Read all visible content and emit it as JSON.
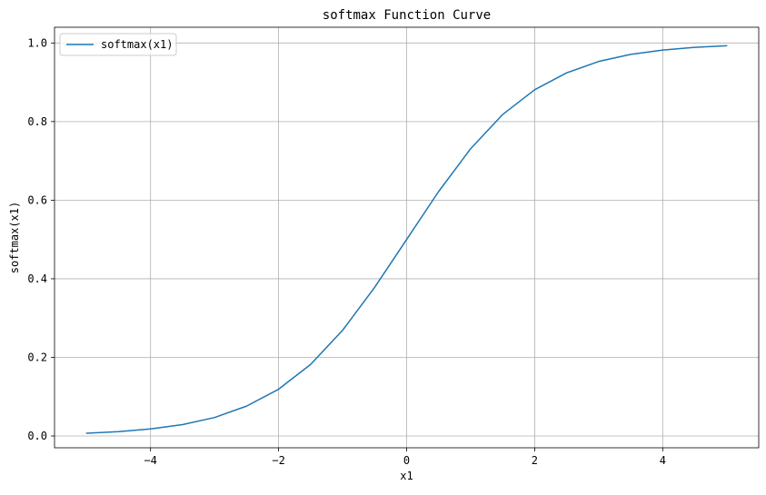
{
  "chart_data": {
    "type": "line",
    "title": "softmax Function Curve",
    "xlabel": "x1",
    "ylabel": "softmax(x1)",
    "xlim": [
      -5.5,
      5.5
    ],
    "ylim": [
      -0.03,
      1.04
    ],
    "xticks": [
      -4,
      -2,
      0,
      2,
      4
    ],
    "xtick_labels": [
      "−4",
      "−2",
      "0",
      "2",
      "4"
    ],
    "yticks": [
      0.0,
      0.2,
      0.4,
      0.6,
      0.8,
      1.0
    ],
    "ytick_labels": [
      "0.0",
      "0.2",
      "0.4",
      "0.6",
      "0.8",
      "1.0"
    ],
    "grid": true,
    "legend_position": "top-left",
    "series": [
      {
        "name": "softmax(x1)",
        "color": "#1f77b4",
        "x": [
          -5.0,
          -4.5,
          -4.0,
          -3.5,
          -3.0,
          -2.5,
          -2.0,
          -1.5,
          -1.0,
          -0.5,
          0.0,
          0.5,
          1.0,
          1.5,
          2.0,
          2.5,
          3.0,
          3.5,
          4.0,
          4.5,
          5.0
        ],
        "y": [
          0.007,
          0.011,
          0.018,
          0.029,
          0.047,
          0.076,
          0.119,
          0.182,
          0.269,
          0.378,
          0.5,
          0.622,
          0.731,
          0.818,
          0.881,
          0.924,
          0.953,
          0.971,
          0.982,
          0.989,
          0.993
        ]
      }
    ]
  }
}
